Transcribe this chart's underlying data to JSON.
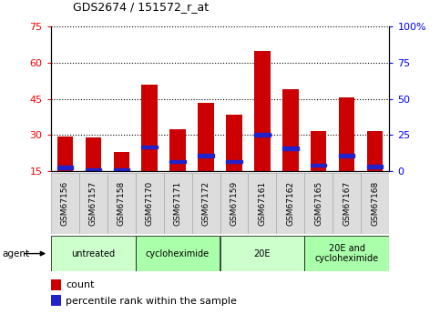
{
  "title": "GDS2674 / 151572_r_at",
  "categories": [
    "GSM67156",
    "GSM67157",
    "GSM67158",
    "GSM67170",
    "GSM67171",
    "GSM67172",
    "GSM67159",
    "GSM67161",
    "GSM67162",
    "GSM67165",
    "GSM67167",
    "GSM67168"
  ],
  "count_values": [
    29.5,
    29.0,
    23.0,
    51.0,
    32.5,
    43.5,
    38.5,
    65.0,
    49.0,
    31.5,
    45.5,
    31.5
  ],
  "percentile_values": [
    16.5,
    15.5,
    15.5,
    25.0,
    19.0,
    21.5,
    19.0,
    30.0,
    24.5,
    17.5,
    21.5,
    17.0
  ],
  "bar_color": "#cc0000",
  "percentile_color": "#2222cc",
  "ylim_left": [
    15,
    75
  ],
  "ylim_right": [
    0,
    100
  ],
  "yticks_left": [
    15,
    30,
    45,
    60,
    75
  ],
  "ytick_labels_left": [
    "15",
    "30",
    "45",
    "60",
    "75"
  ],
  "yticks_right": [
    0,
    25,
    50,
    75,
    100
  ],
  "ytick_labels_right": [
    "0",
    "25",
    "50",
    "75",
    "100%"
  ],
  "groups": [
    {
      "label": "untreated",
      "start": 0,
      "end": 3,
      "color": "#ccffcc"
    },
    {
      "label": "cycloheximide",
      "start": 3,
      "end": 6,
      "color": "#aaffaa"
    },
    {
      "label": "20E",
      "start": 6,
      "end": 9,
      "color": "#ccffcc"
    },
    {
      "label": "20E and\ncycloheximide",
      "start": 9,
      "end": 12,
      "color": "#aaffaa"
    }
  ],
  "bar_width": 0.55,
  "tick_label_bg": "#dddddd",
  "agent_label": "agent"
}
